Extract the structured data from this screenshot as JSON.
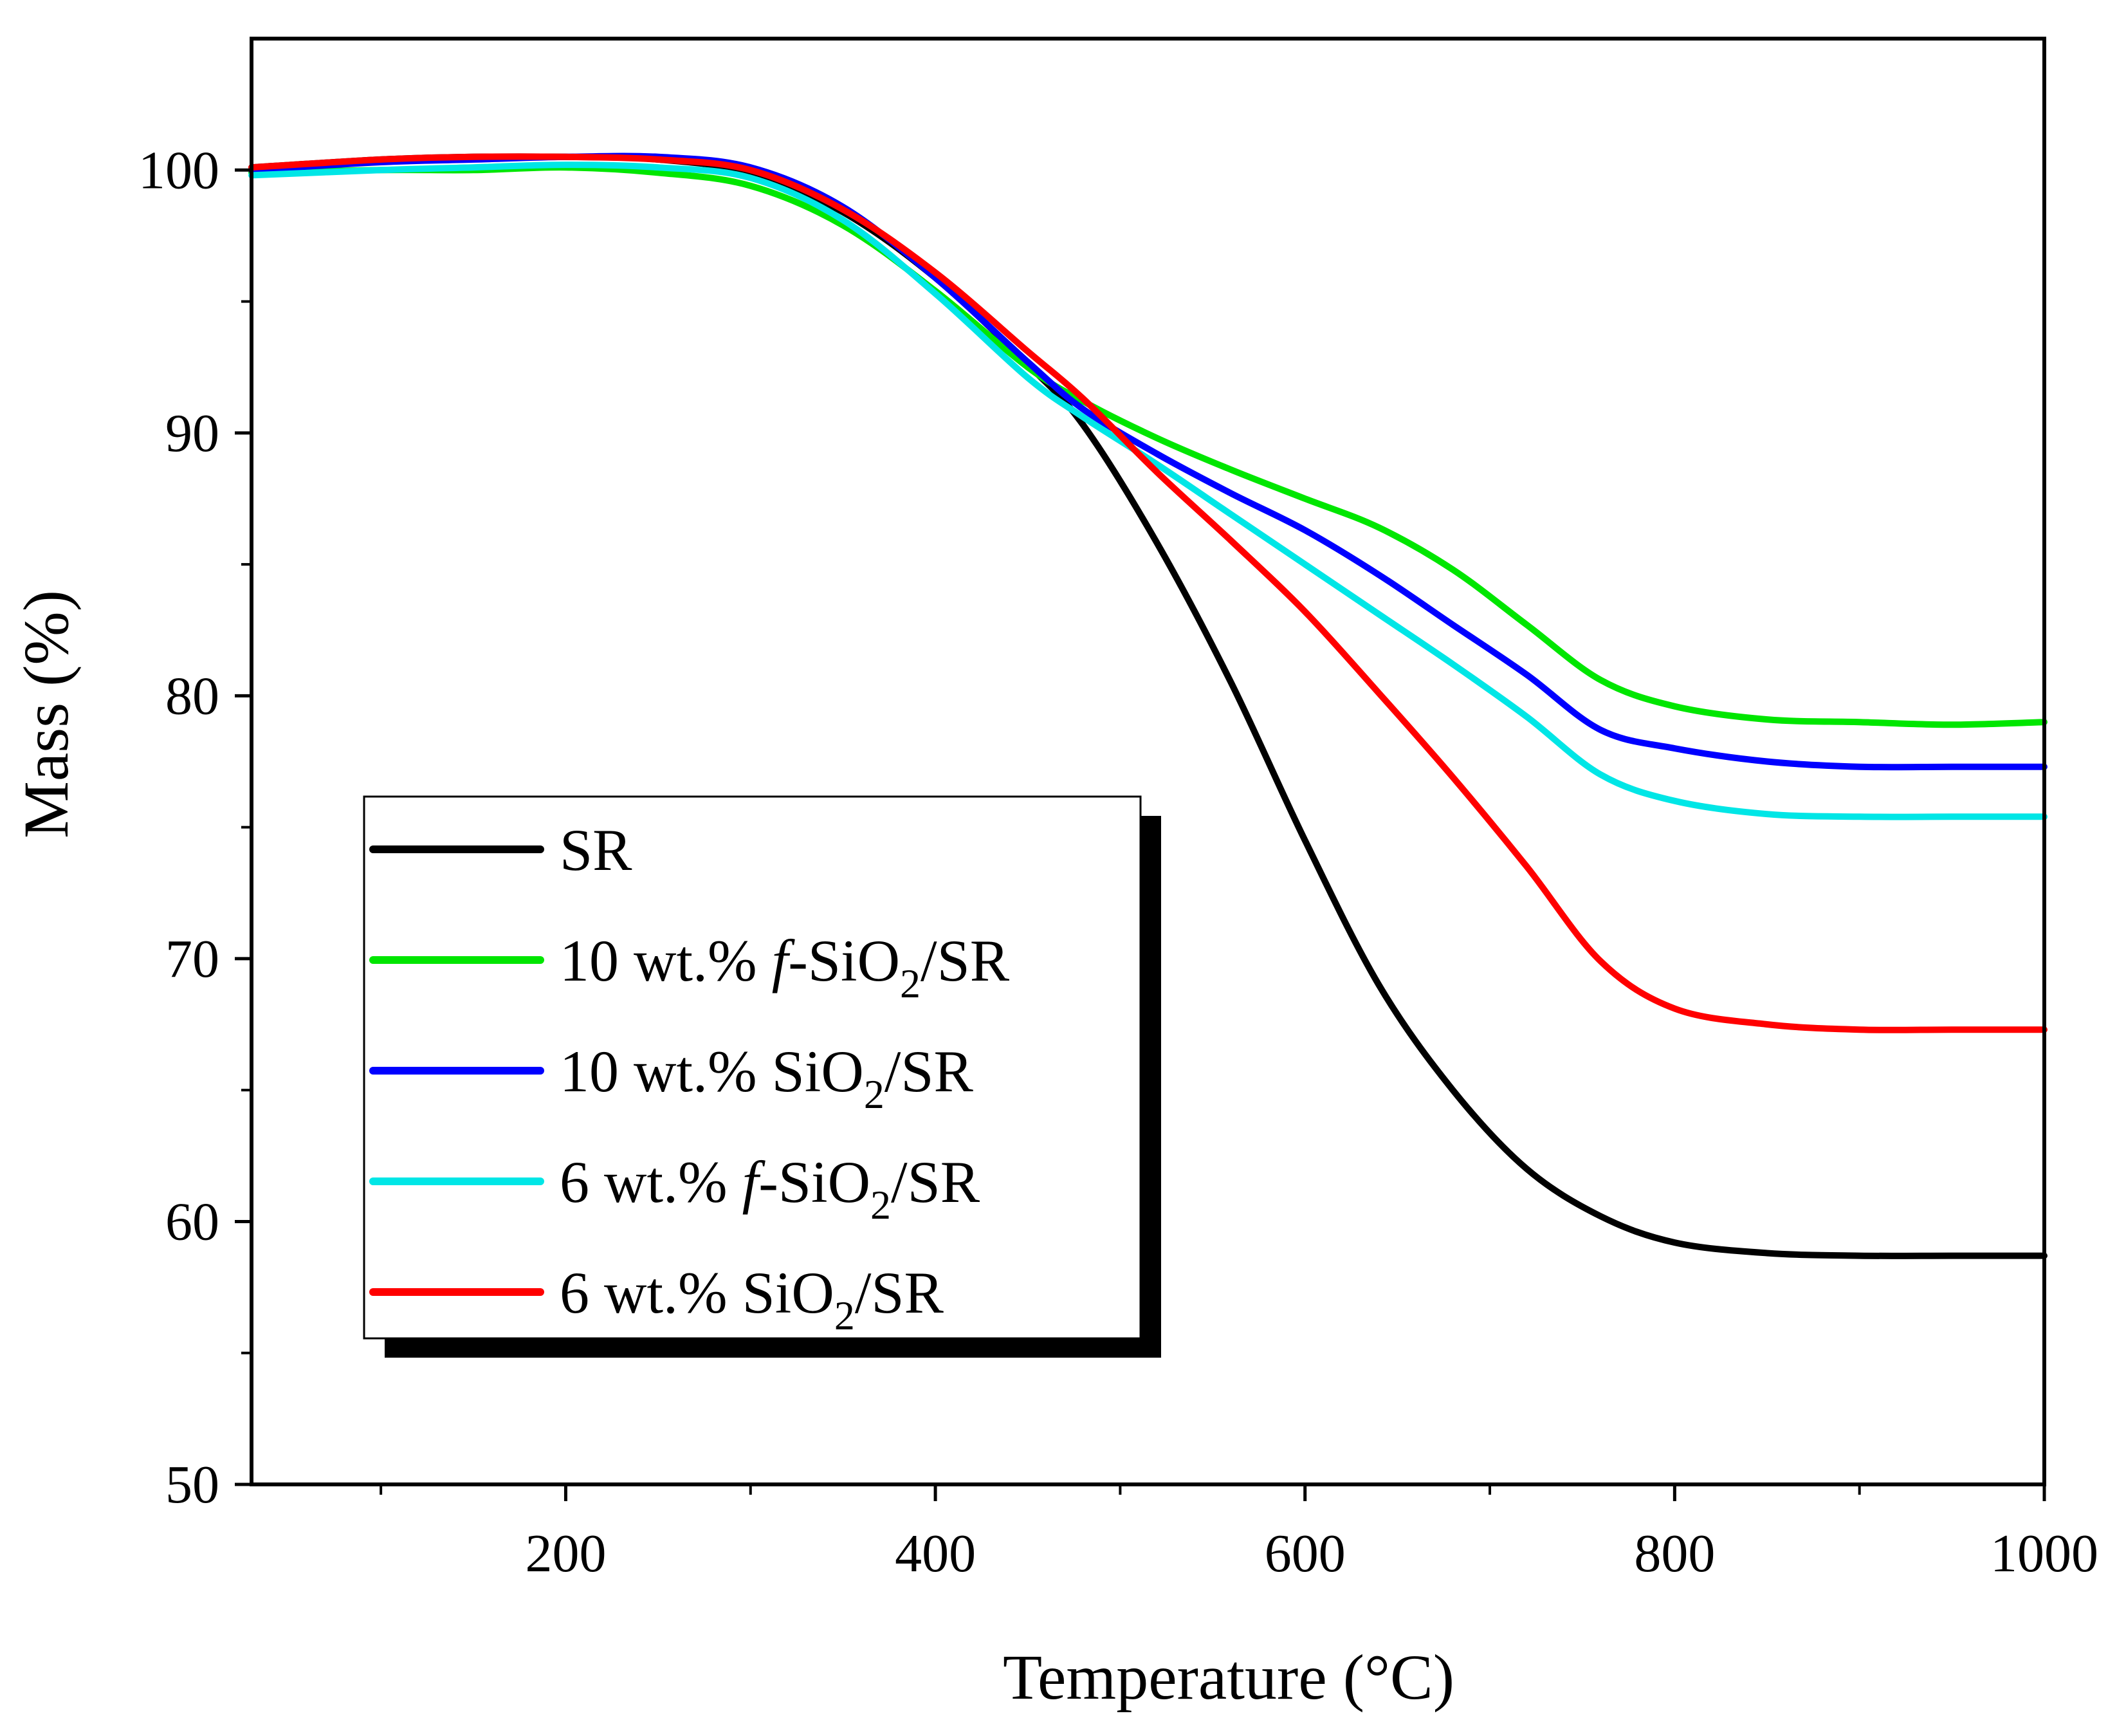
{
  "chart_data": {
    "type": "line",
    "title": "",
    "xlabel": "Temperature (°C)",
    "ylabel": "Mass (%)",
    "xlim": [
      30,
      1000
    ],
    "ylim": [
      50,
      105
    ],
    "xticks": [
      200,
      400,
      600,
      800,
      1000
    ],
    "yticks": [
      50,
      60,
      70,
      80,
      90,
      100
    ],
    "grid": false,
    "legend_position": "lower-left",
    "series": [
      {
        "name": "SR",
        "legend": {
          "prefix": "SR",
          "italic": "",
          "base": "",
          "sub": "",
          "suffix": ""
        },
        "color": "#000000",
        "x": [
          30,
          100,
          150,
          200,
          250,
          300,
          350,
          400,
          450,
          480,
          520,
          560,
          600,
          640,
          680,
          720,
          760,
          800,
          850,
          900,
          950,
          1000
        ],
        "y": [
          100.1,
          100.4,
          100.5,
          100.5,
          100.4,
          99.9,
          98.4,
          95.9,
          92.6,
          90.3,
          85.8,
          80.5,
          74.5,
          69.0,
          65.0,
          62.0,
          60.2,
          59.2,
          58.8,
          58.7,
          58.7,
          58.7
        ]
      },
      {
        "name": "10 wt.% f-SiO2/SR",
        "legend": {
          "prefix": "10 wt.% ",
          "italic": "f",
          "base": "-SiO",
          "sub": "2",
          "suffix": "/SR"
        },
        "color": "#00e600",
        "x": [
          30,
          100,
          150,
          200,
          250,
          300,
          350,
          400,
          450,
          480,
          520,
          560,
          600,
          640,
          680,
          720,
          760,
          800,
          850,
          900,
          950,
          1000
        ],
        "y": [
          99.9,
          100.0,
          100.0,
          100.1,
          99.9,
          99.4,
          97.9,
          95.4,
          92.5,
          91.2,
          89.8,
          88.6,
          87.5,
          86.4,
          84.8,
          82.7,
          80.6,
          79.6,
          79.1,
          79.0,
          78.9,
          79.0
        ]
      },
      {
        "name": "10 wt.% SiO2/SR",
        "legend": {
          "prefix": "10 wt.% ",
          "italic": "",
          "base": "SiO",
          "sub": "2",
          "suffix": "/SR"
        },
        "color": "#0000ff",
        "x": [
          30,
          100,
          150,
          200,
          250,
          300,
          350,
          400,
          450,
          480,
          520,
          560,
          600,
          640,
          680,
          720,
          760,
          800,
          850,
          900,
          950,
          1000
        ],
        "y": [
          100.0,
          100.3,
          100.4,
          100.5,
          100.5,
          100.1,
          98.6,
          95.9,
          92.7,
          90.9,
          89.2,
          87.7,
          86.3,
          84.6,
          82.7,
          80.8,
          78.7,
          78.0,
          77.5,
          77.3,
          77.3,
          77.3
        ]
      },
      {
        "name": "6 wt.% f-SiO2/SR",
        "legend": {
          "prefix": "6 wt.% ",
          "italic": "f",
          "base": "-SiO",
          "sub": "2",
          "suffix": "/SR"
        },
        "color": "#00e6e6",
        "x": [
          30,
          100,
          150,
          200,
          250,
          300,
          350,
          400,
          450,
          480,
          520,
          560,
          600,
          640,
          680,
          720,
          760,
          800,
          850,
          900,
          950,
          1000
        ],
        "y": [
          99.8,
          100.0,
          100.1,
          100.2,
          100.1,
          99.7,
          98.1,
          95.3,
          92.1,
          90.6,
          88.8,
          86.9,
          85.0,
          83.1,
          81.2,
          79.2,
          77.0,
          76.0,
          75.5,
          75.4,
          75.4,
          75.4
        ]
      },
      {
        "name": "6 wt.% SiO2/SR",
        "legend": {
          "prefix": "6 wt.% ",
          "italic": "",
          "base": "SiO",
          "sub": "2",
          "suffix": "/SR"
        },
        "color": "#ff0000",
        "x": [
          30,
          100,
          150,
          200,
          250,
          300,
          350,
          400,
          450,
          480,
          520,
          560,
          600,
          640,
          680,
          720,
          760,
          800,
          850,
          900,
          950,
          1000
        ],
        "y": [
          100.1,
          100.4,
          100.5,
          100.5,
          100.4,
          100.0,
          98.5,
          96.1,
          93.1,
          91.3,
          88.5,
          85.9,
          83.2,
          80.1,
          76.9,
          73.5,
          69.9,
          68.1,
          67.5,
          67.3,
          67.3,
          67.3
        ]
      }
    ]
  }
}
